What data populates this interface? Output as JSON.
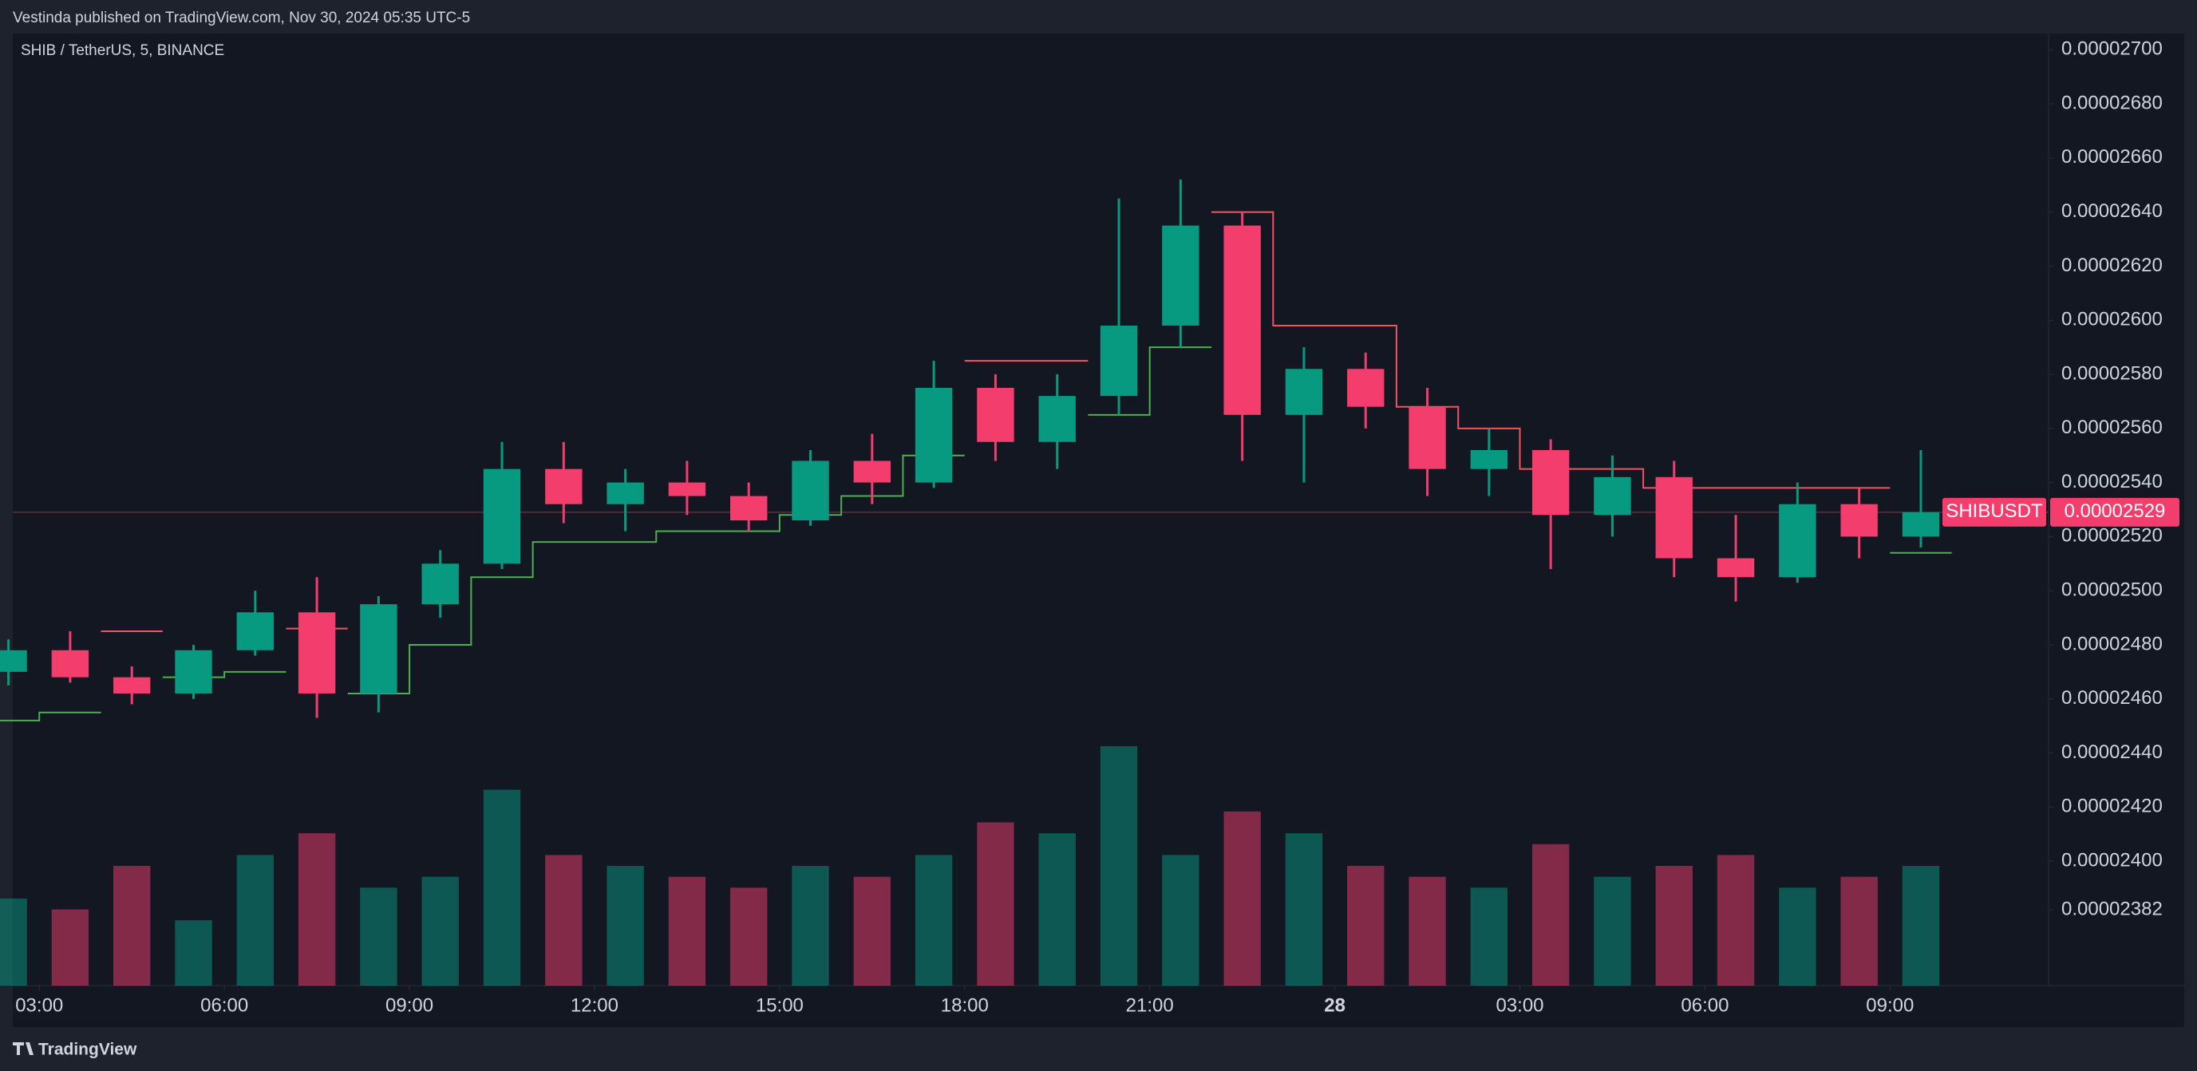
{
  "header": {
    "publisher": "Vestinda published on TradingView.com, Nov 30, 2024 05:35 UTC-5"
  },
  "footer": {
    "brand": "TradingView"
  },
  "chart_data": {
    "type": "candlestick",
    "title": "SHIB / TetherUS, 5, BINANCE",
    "symbol": "SHIBUSDT",
    "up_color": "#089981",
    "down_color": "#f23d6d",
    "x": [
      2.5,
      3.5,
      4.5,
      5.5,
      6.5,
      7.5,
      8.5,
      9.5,
      10.5,
      11.5,
      12.5,
      13.5,
      14.5,
      15.5,
      16.5,
      17.5,
      18.5,
      19.5,
      20.5,
      21.5,
      22.5,
      23.5,
      24.5,
      25.5,
      26.5,
      27.5,
      28.5,
      29.5,
      30.5,
      31.5,
      32.5,
      33.5
    ],
    "open": [
      2.47e-05,
      2.478e-05,
      2.468e-05,
      2.462e-05,
      2.478e-05,
      2.492e-05,
      2.462e-05,
      2.495e-05,
      2.51e-05,
      2.545e-05,
      2.532e-05,
      2.54e-05,
      2.535e-05,
      2.526e-05,
      2.548e-05,
      2.54e-05,
      2.575e-05,
      2.555e-05,
      2.572e-05,
      2.598e-05,
      2.635e-05,
      2.565e-05,
      2.582e-05,
      2.568e-05,
      2.545e-05,
      2.552e-05,
      2.528e-05,
      2.542e-05,
      2.512e-05,
      2.505e-05,
      2.532e-05,
      2.52e-05
    ],
    "high": [
      2.482e-05,
      2.485e-05,
      2.472e-05,
      2.48e-05,
      2.5e-05,
      2.505e-05,
      2.498e-05,
      2.515e-05,
      2.555e-05,
      2.555e-05,
      2.545e-05,
      2.548e-05,
      2.54e-05,
      2.552e-05,
      2.558e-05,
      2.585e-05,
      2.58e-05,
      2.58e-05,
      2.645e-05,
      2.652e-05,
      2.64e-05,
      2.59e-05,
      2.588e-05,
      2.575e-05,
      2.56e-05,
      2.556e-05,
      2.55e-05,
      2.548e-05,
      2.528e-05,
      2.54e-05,
      2.538e-05,
      2.552e-05
    ],
    "low": [
      2.465e-05,
      2.466e-05,
      2.458e-05,
      2.46e-05,
      2.476e-05,
      2.453e-05,
      2.455e-05,
      2.49e-05,
      2.508e-05,
      2.525e-05,
      2.522e-05,
      2.528e-05,
      2.522e-05,
      2.524e-05,
      2.532e-05,
      2.538e-05,
      2.548e-05,
      2.545e-05,
      2.565e-05,
      2.59e-05,
      2.548e-05,
      2.54e-05,
      2.56e-05,
      2.535e-05,
      2.535e-05,
      2.508e-05,
      2.52e-05,
      2.505e-05,
      2.496e-05,
      2.503e-05,
      2.512e-05,
      2.516e-05
    ],
    "close": [
      2.478e-05,
      2.468e-05,
      2.462e-05,
      2.478e-05,
      2.492e-05,
      2.462e-05,
      2.495e-05,
      2.51e-05,
      2.545e-05,
      2.532e-05,
      2.54e-05,
      2.535e-05,
      2.526e-05,
      2.548e-05,
      2.54e-05,
      2.575e-05,
      2.555e-05,
      2.572e-05,
      2.598e-05,
      2.635e-05,
      2.565e-05,
      2.582e-05,
      2.568e-05,
      2.545e-05,
      2.552e-05,
      2.528e-05,
      2.542e-05,
      2.512e-05,
      2.505e-05,
      2.532e-05,
      2.52e-05,
      2.529e-05
    ],
    "volume": [
      40,
      35,
      55,
      30,
      60,
      70,
      45,
      50,
      90,
      60,
      55,
      50,
      45,
      55,
      50,
      60,
      75,
      70,
      110,
      60,
      80,
      70,
      55,
      50,
      45,
      65,
      50,
      55,
      60,
      45,
      50,
      55
    ],
    "supertrend": [
      {
        "name": "up",
        "color": "#4caf50",
        "values": [
          2.452e-05,
          2.455e-05,
          null,
          2.468e-05,
          2.47e-05,
          null,
          2.462e-05,
          2.48e-05,
          2.505e-05,
          2.518e-05,
          2.518e-05,
          2.522e-05,
          2.522e-05,
          2.528e-05,
          2.535e-05,
          2.55e-05,
          null,
          null,
          2.565e-05,
          2.59e-05,
          null,
          null,
          null,
          null,
          null,
          null,
          null,
          null,
          null,
          null,
          null,
          2.514e-05
        ]
      },
      {
        "name": "down",
        "color": "#f7525f",
        "values": [
          null,
          null,
          2.485e-05,
          null,
          null,
          2.486e-05,
          null,
          null,
          null,
          null,
          null,
          null,
          null,
          null,
          null,
          null,
          2.585e-05,
          2.585e-05,
          null,
          null,
          2.64e-05,
          2.598e-05,
          2.598e-05,
          2.568e-05,
          2.56e-05,
          2.545e-05,
          2.545e-05,
          2.538e-05,
          2.538e-05,
          2.538e-05,
          2.538e-05,
          null
        ]
      }
    ],
    "last_price": {
      "value": 2.529e-05,
      "label": "0.00002529"
    },
    "xlim": [
      2.57,
      35.57
    ],
    "xticks": [
      {
        "value": 3,
        "label": "03:00"
      },
      {
        "value": 6,
        "label": "06:00"
      },
      {
        "value": 9,
        "label": "09:00"
      },
      {
        "value": 12,
        "label": "12:00"
      },
      {
        "value": 15,
        "label": "15:00"
      },
      {
        "value": 18,
        "label": "18:00"
      },
      {
        "value": 21,
        "label": "21:00"
      },
      {
        "value": 24,
        "label": "28"
      },
      {
        "value": 27,
        "label": "03:00"
      },
      {
        "value": 30,
        "label": "06:00"
      },
      {
        "value": 33,
        "label": "09:00"
      }
    ],
    "ylim": [
      2.354e-05,
      2.706e-05
    ],
    "yticks": [
      {
        "value": 2.7e-05,
        "label": "0.00002700"
      },
      {
        "value": 2.68e-05,
        "label": "0.00002680"
      },
      {
        "value": 2.66e-05,
        "label": "0.00002660"
      },
      {
        "value": 2.64e-05,
        "label": "0.00002640"
      },
      {
        "value": 2.62e-05,
        "label": "0.00002620"
      },
      {
        "value": 2.6e-05,
        "label": "0.00002600"
      },
      {
        "value": 2.58e-05,
        "label": "0.00002580"
      },
      {
        "value": 2.56e-05,
        "label": "0.00002560"
      },
      {
        "value": 2.54e-05,
        "label": "0.00002540"
      },
      {
        "value": 2.52e-05,
        "label": "0.00002520"
      },
      {
        "value": 2.5e-05,
        "label": "0.00002500"
      },
      {
        "value": 2.48e-05,
        "label": "0.00002480"
      },
      {
        "value": 2.46e-05,
        "label": "0.00002460"
      },
      {
        "value": 2.44e-05,
        "label": "0.00002440"
      },
      {
        "value": 2.42e-05,
        "label": "0.00002420"
      },
      {
        "value": 2.4e-05,
        "label": "0.00002400"
      },
      {
        "value": 2.382e-05,
        "label": "0.00002382"
      }
    ]
  }
}
